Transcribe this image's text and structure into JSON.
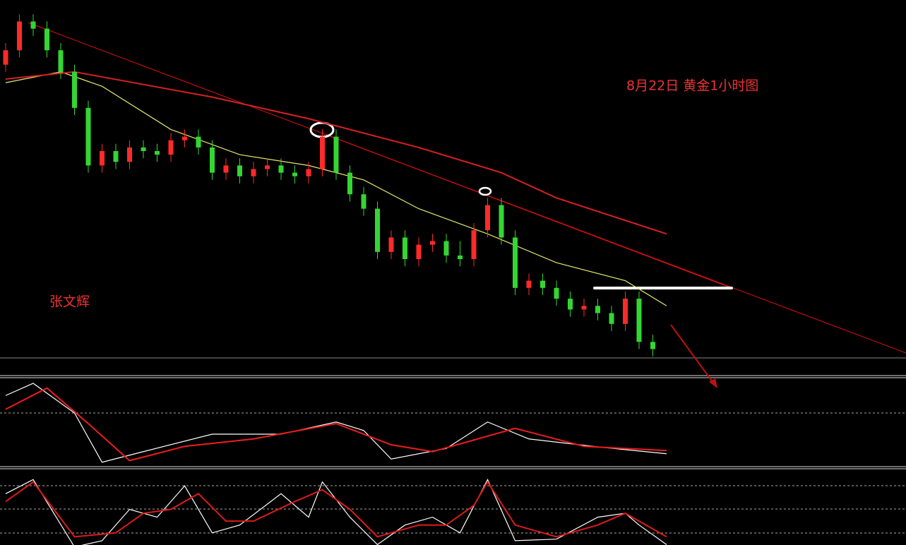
{
  "chart_data": [
    {
      "type": "candlestick",
      "title": "8月22日  黄金1小时图",
      "subtitle": "张文辉",
      "ylim": [
        0,
        100
      ],
      "up_color": "#ff2a2a",
      "down_color": "#33d633",
      "open": [
        84,
        88,
        96,
        94,
        88,
        82,
        72,
        56,
        60,
        57,
        61,
        60,
        59,
        63,
        64,
        61,
        54,
        56,
        53,
        55,
        56,
        54,
        53,
        55,
        64,
        54,
        48,
        44,
        32,
        36,
        30,
        34,
        35,
        31,
        30,
        38,
        45,
        36,
        22,
        24,
        22,
        19,
        16,
        17,
        15,
        12,
        19,
        7
      ],
      "high": [
        90,
        98,
        98,
        96,
        90,
        84,
        74,
        62,
        62,
        63,
        63,
        62,
        65,
        66,
        66,
        63,
        58,
        58,
        57,
        58,
        58,
        56,
        57,
        66,
        66,
        56,
        50,
        46,
        38,
        38,
        36,
        37,
        37,
        35,
        40,
        47,
        47,
        38,
        26,
        26,
        24,
        21,
        19,
        19,
        17,
        21,
        21,
        9
      ],
      "low": [
        82,
        86,
        92,
        86,
        80,
        70,
        54,
        54,
        55,
        55,
        58,
        57,
        57,
        61,
        59,
        52,
        52,
        51,
        51,
        53,
        52,
        51,
        51,
        53,
        52,
        46,
        42,
        30,
        30,
        28,
        28,
        32,
        29,
        28,
        28,
        36,
        34,
        20,
        20,
        20,
        17,
        14,
        14,
        13,
        10,
        10,
        5,
        3
      ],
      "close": [
        88,
        96,
        94,
        88,
        82,
        72,
        56,
        60,
        57,
        61,
        60,
        59,
        63,
        64,
        61,
        54,
        56,
        53,
        55,
        56,
        54,
        53,
        55,
        64,
        54,
        48,
        44,
        32,
        36,
        30,
        34,
        35,
        31,
        30,
        38,
        45,
        36,
        22,
        24,
        22,
        19,
        16,
        17,
        15,
        12,
        19,
        7,
        5
      ],
      "series": [
        {
          "color": "#e8e870",
          "x": [
            0,
            4,
            7,
            12,
            17,
            22,
            26,
            30,
            35,
            40,
            45,
            48
          ],
          "values": [
            79,
            82,
            78,
            66,
            59,
            56,
            52,
            44,
            37,
            29,
            24,
            17
          ]
        },
        {
          "color": "#d62020",
          "x": [
            0,
            5,
            15,
            22,
            30,
            36,
            40,
            48
          ],
          "values": [
            80,
            82,
            75,
            69,
            61,
            54,
            47,
            37
          ]
        }
      ]
    },
    {
      "type": "line",
      "ylim": [
        -1,
        0.6
      ],
      "series": [
        {
          "color": "#ffffff",
          "x": [
            0,
            2,
            5,
            7,
            10,
            15,
            20,
            24,
            26,
            28,
            32,
            35,
            38,
            43,
            48
          ],
          "values": [
            0.33,
            0.56,
            0,
            -0.93,
            -0.73,
            -0.4,
            -0.4,
            -0.17,
            -0.33,
            -0.87,
            -0.67,
            -0.17,
            -0.49,
            -0.64,
            -0.77
          ]
        },
        {
          "color": "#ee1c1c",
          "x": [
            0,
            3,
            6,
            9,
            13,
            18,
            24,
            28,
            31,
            37,
            42,
            48
          ],
          "values": [
            0.07,
            0.47,
            -0.2,
            -0.9,
            -0.63,
            -0.49,
            -0.2,
            -0.6,
            -0.73,
            -0.29,
            -0.63,
            -0.71
          ]
        }
      ]
    },
    {
      "type": "line",
      "ylim": [
        0,
        100
      ],
      "series": [
        {
          "color": "#ffffff",
          "x": [
            0,
            2,
            5,
            7,
            9,
            11,
            13,
            15,
            17,
            20,
            22,
            23,
            25,
            27,
            29,
            31,
            33,
            35,
            37,
            40,
            43,
            45,
            46,
            48
          ],
          "values": [
            70,
            88,
            2,
            10,
            50,
            40,
            80,
            20,
            30,
            70,
            40,
            85,
            40,
            5,
            30,
            40,
            20,
            88,
            10,
            12,
            40,
            45,
            30,
            5
          ]
        },
        {
          "color": "#dd1a1a",
          "x": [
            0,
            2,
            5,
            8,
            10,
            12,
            14,
            16,
            18,
            21,
            23,
            25,
            27,
            30,
            32,
            34,
            35,
            37,
            40,
            43,
            45,
            47,
            48
          ],
          "values": [
            60,
            85,
            15,
            20,
            45,
            50,
            70,
            35,
            35,
            60,
            75,
            50,
            15,
            30,
            30,
            55,
            85,
            30,
            15,
            30,
            45,
            25,
            15
          ]
        }
      ]
    }
  ]
}
